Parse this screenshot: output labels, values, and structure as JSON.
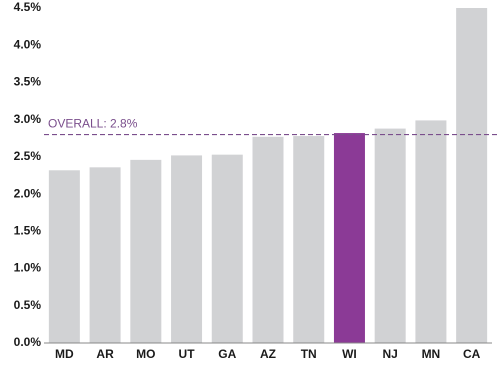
{
  "chart_data": {
    "type": "bar",
    "categories": [
      "MD",
      "AR",
      "MO",
      "UT",
      "GA",
      "AZ",
      "TN",
      "WI",
      "NJ",
      "MN",
      "CA"
    ],
    "values": [
      2.32,
      2.36,
      2.46,
      2.52,
      2.53,
      2.77,
      2.78,
      2.82,
      2.88,
      2.99,
      4.5
    ],
    "colors": [
      "#d1d2d4",
      "#d1d2d4",
      "#d1d2d4",
      "#d1d2d4",
      "#d1d2d4",
      "#d1d2d4",
      "#d1d2d4",
      "#8b3a96",
      "#d1d2d4",
      "#d1d2d4",
      "#d1d2d4"
    ],
    "ylim": [
      0,
      4.5
    ],
    "yticks": [
      {
        "value": 0,
        "label": "0.0%"
      },
      {
        "value": 0.5,
        "label": "0.5%"
      },
      {
        "value": 1,
        "label": "1.0%"
      },
      {
        "value": 1.5,
        "label": "1.5%"
      },
      {
        "value": 2,
        "label": "2.0%"
      },
      {
        "value": 2.5,
        "label": "2.5%"
      },
      {
        "value": 3,
        "label": "3.0%"
      },
      {
        "value": 3.5,
        "label": "3.5%"
      },
      {
        "value": 4,
        "label": "4.0%"
      },
      {
        "value": 4.5,
        "label": "4.5%"
      }
    ],
    "annotation": {
      "text": "OVERALL: 2.8%",
      "value": 2.8,
      "color": "#7a4e8c"
    },
    "grid": false
  }
}
